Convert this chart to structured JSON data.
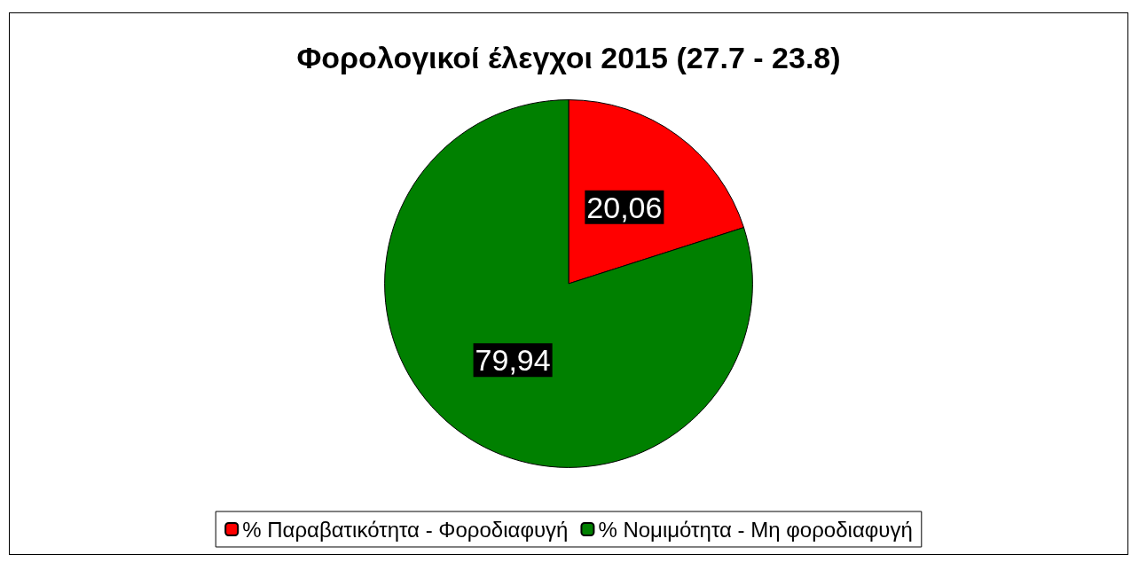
{
  "chart_data": {
    "type": "pie",
    "title": "Φορολογικοί έλεγχοι 2015 (27.7 - 23.8)",
    "categories": [
      "% Παραβατικότητα - Φοροδιαφυγή",
      "% Νομιμότητα - Μη φοροδιαφυγή"
    ],
    "values": [
      20.06,
      79.94
    ],
    "colors": [
      "#ff0000",
      "#008000"
    ],
    "value_labels": [
      "20,06",
      "79,94"
    ],
    "legend": "bottom"
  }
}
